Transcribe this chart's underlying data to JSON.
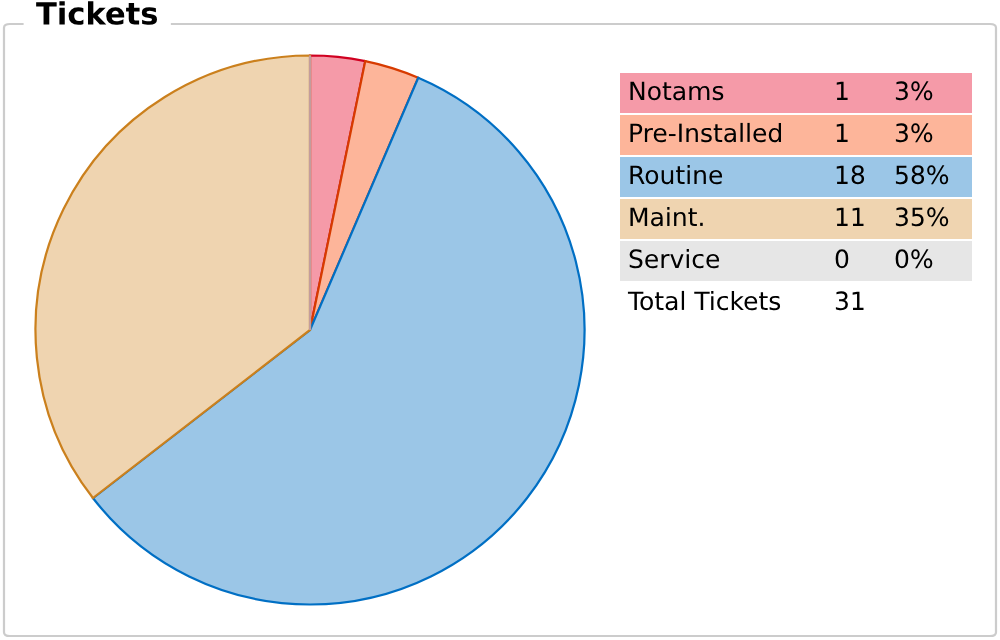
{
  "chart_data": {
    "type": "pie",
    "title": "Tickets",
    "categories": [
      "Notams",
      "Pre-Installed",
      "Routine",
      "Maint.",
      "Service"
    ],
    "values": [
      1,
      1,
      18,
      11,
      0
    ],
    "colors": [
      "#f59aa8",
      "#fdb59a",
      "#9bc6e7",
      "#efd4b0",
      "#e6e6e6"
    ],
    "value_labels": [
      "1",
      "1",
      "18",
      "11",
      "0"
    ],
    "annotations": [
      "3%",
      "3%",
      "58%",
      "35%",
      "0%",
      "Total Tickets",
      "31"
    ],
    "legend": "right"
  }
}
